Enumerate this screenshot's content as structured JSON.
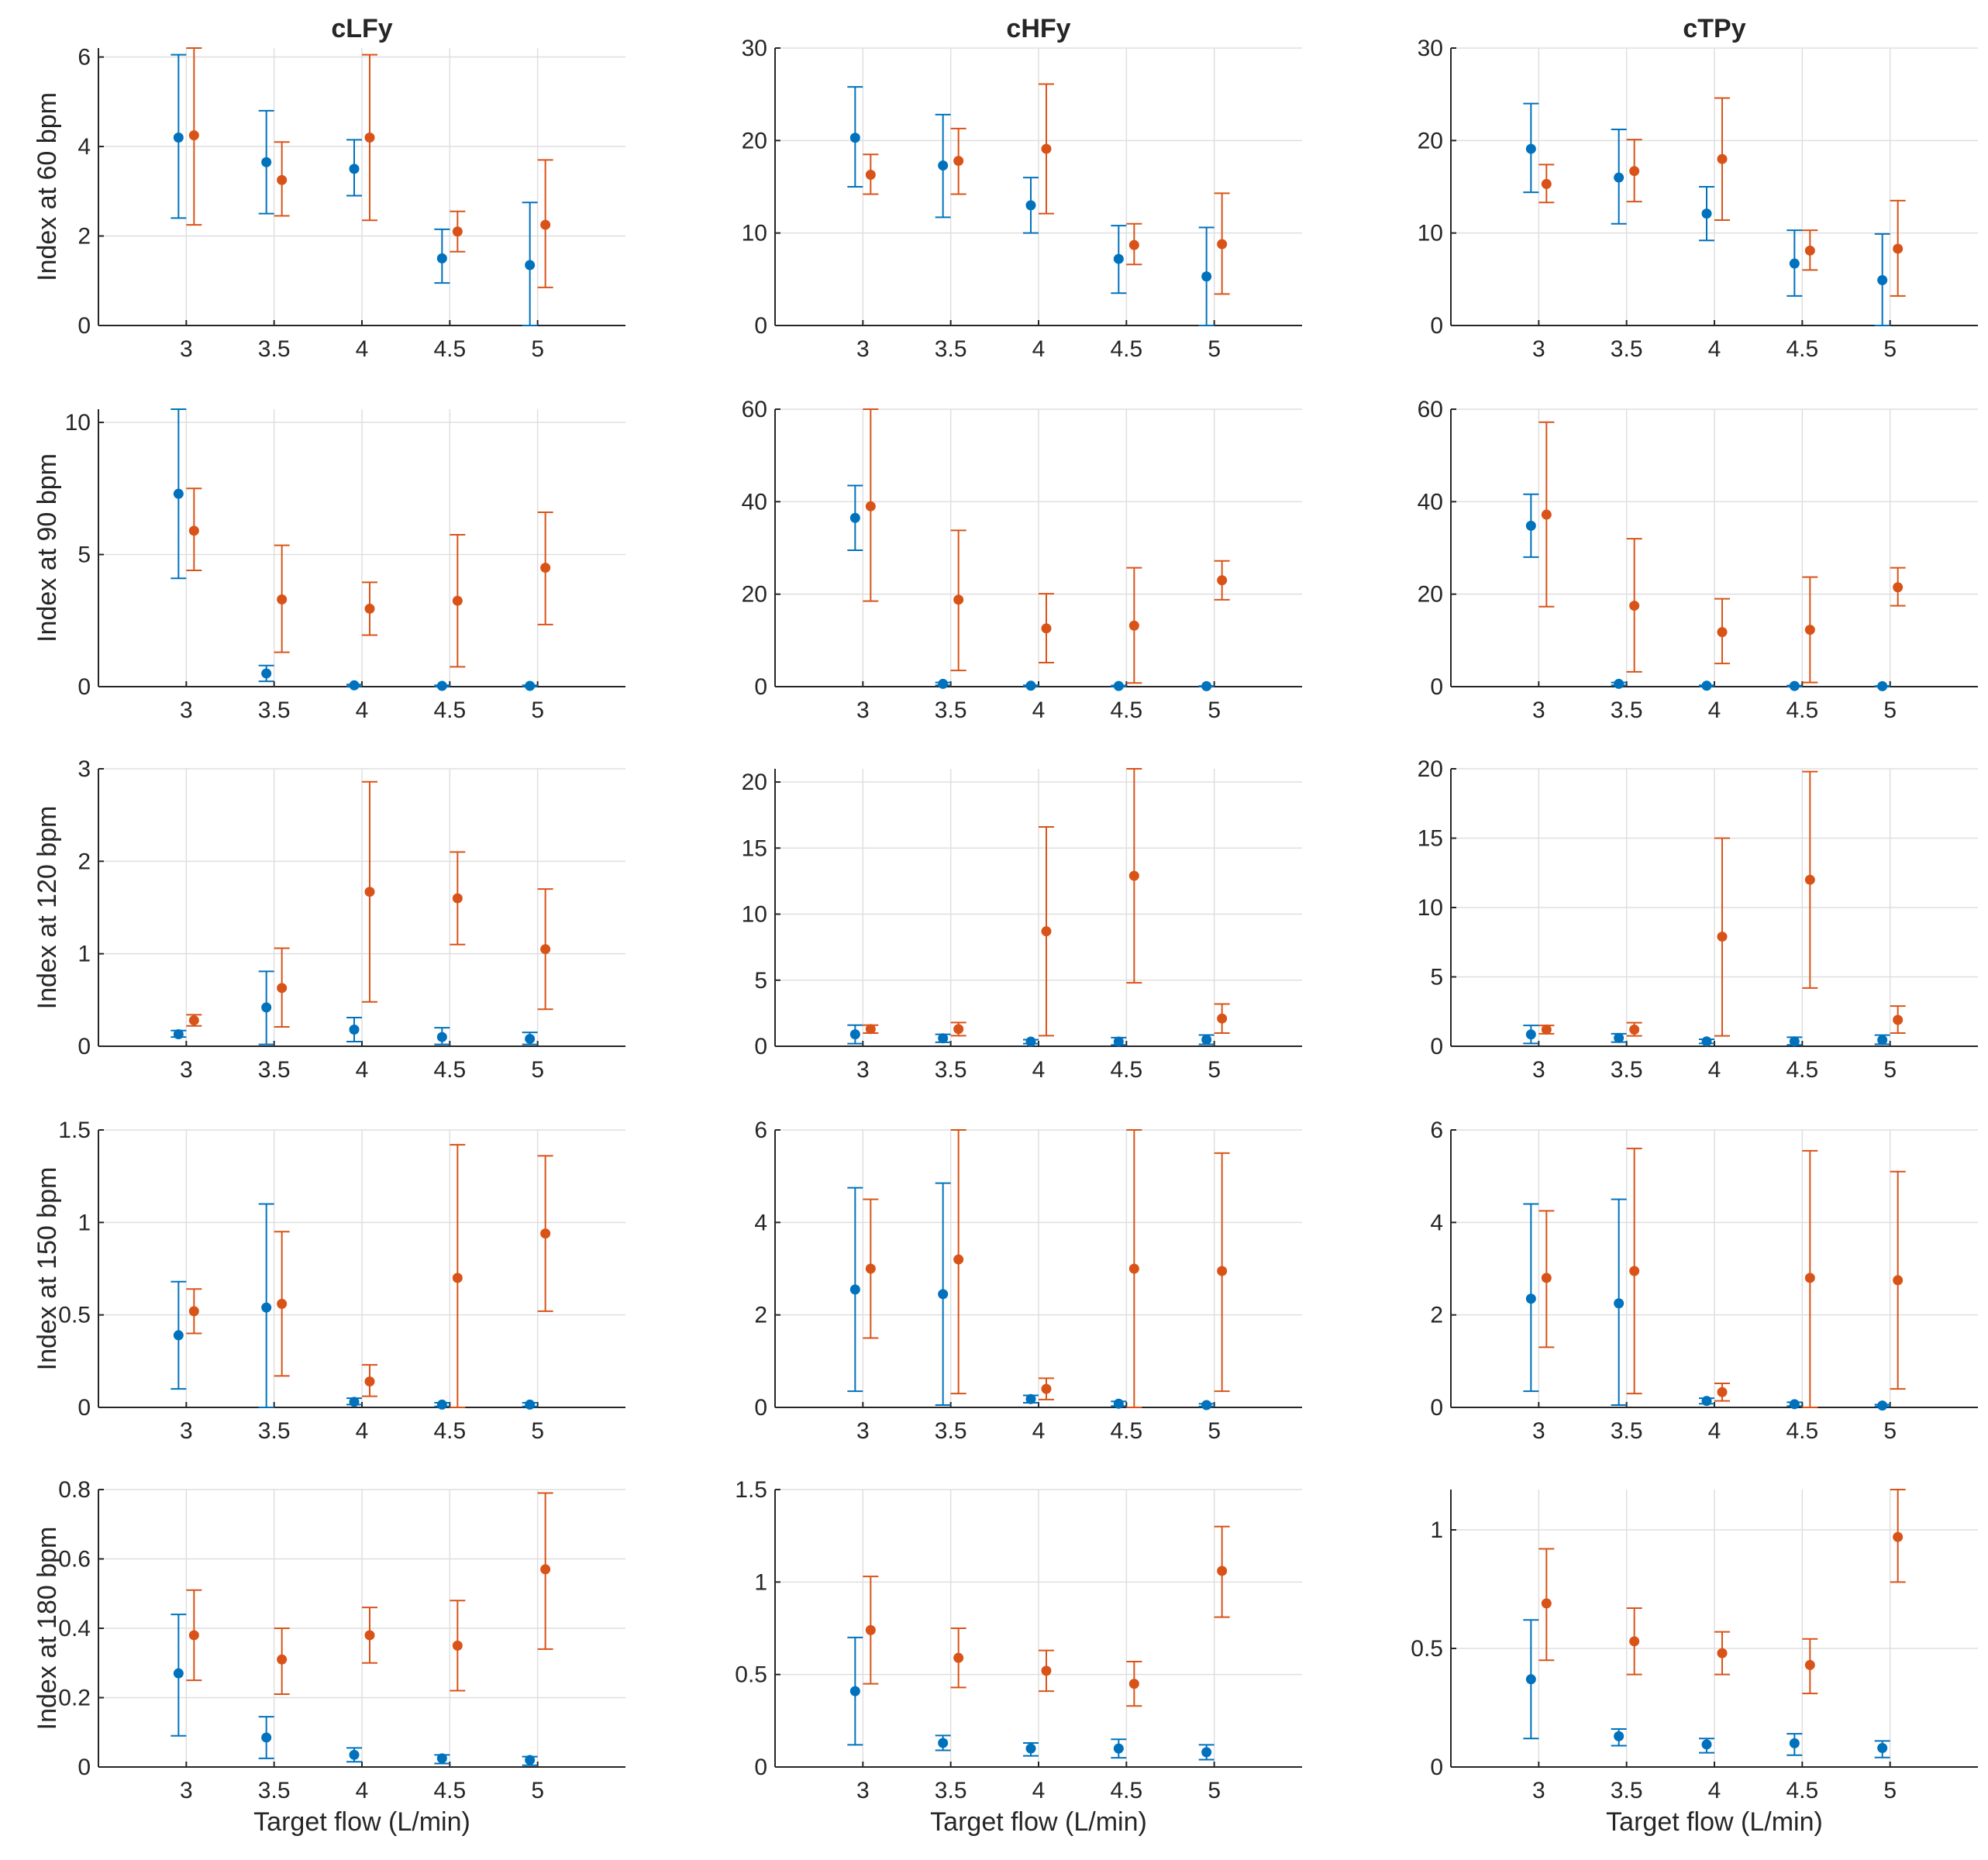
{
  "chart_data": {
    "type": "errorbar-grid",
    "column_titles": [
      "cLFy",
      "cHFy",
      "cTPy"
    ],
    "row_labels": [
      "Index at 60 bpm",
      "Index at 90 bpm",
      "Index at 120 bpm",
      "Index at 150 bpm",
      "Index at 180 bpm"
    ],
    "xlabel": "Target flow (L/min)",
    "x": [
      3,
      3.5,
      4,
      4.5,
      5
    ],
    "x_tick_labels": [
      "3",
      "3.5",
      "4",
      "4.5",
      "5"
    ],
    "xlim": [
      2.5,
      5.5
    ],
    "colors": {
      "series_a": "#0072BD",
      "series_b": "#D95319"
    },
    "panels": [
      {
        "row": 0,
        "col": 0,
        "ylim": [
          0,
          6.2
        ],
        "yticks": [
          0,
          2,
          4,
          6
        ],
        "ytick_labels": [
          "0",
          "2",
          "4",
          "6"
        ],
        "series": [
          {
            "name": "blue",
            "mean": [
              4.2,
              3.65,
              3.5,
              1.5,
              1.35
            ],
            "low": [
              2.4,
              2.5,
              2.9,
              0.95,
              0
            ],
            "high": [
              6.05,
              4.8,
              4.15,
              2.15,
              2.75
            ]
          },
          {
            "name": "orange",
            "mean": [
              4.25,
              3.25,
              4.2,
              2.1,
              2.25
            ],
            "low": [
              2.25,
              2.45,
              2.35,
              1.65,
              0.85
            ],
            "high": [
              6.25,
              4.1,
              6.05,
              2.55,
              3.7
            ]
          }
        ]
      },
      {
        "row": 0,
        "col": 1,
        "ylim": [
          0,
          30
        ],
        "yticks": [
          0,
          10,
          20,
          30
        ],
        "ytick_labels": [
          "0",
          "10",
          "20",
          "30"
        ],
        "series": [
          {
            "name": "blue",
            "mean": [
              20.3,
              17.3,
              13,
              7.2,
              5.3
            ],
            "low": [
              15,
              11.7,
              10,
              3.5,
              0
            ],
            "high": [
              25.8,
              22.8,
              16,
              10.8,
              10.6
            ]
          },
          {
            "name": "orange",
            "mean": [
              16.3,
              17.8,
              19.1,
              8.7,
              8.8
            ],
            "low": [
              14.2,
              14.2,
              12.1,
              6.6,
              3.4
            ],
            "high": [
              18.5,
              21.3,
              26.1,
              11,
              14.3
            ]
          }
        ]
      },
      {
        "row": 0,
        "col": 2,
        "ylim": [
          0,
          30
        ],
        "yticks": [
          0,
          10,
          20,
          30
        ],
        "ytick_labels": [
          "0",
          "10",
          "20",
          "30"
        ],
        "series": [
          {
            "name": "blue",
            "mean": [
              19.1,
              16,
              12.1,
              6.7,
              4.9
            ],
            "low": [
              14.4,
              11,
              9.2,
              3.2,
              0
            ],
            "high": [
              24,
              21.2,
              15,
              10.3,
              9.9
            ]
          },
          {
            "name": "orange",
            "mean": [
              15.3,
              16.7,
              18,
              8.1,
              8.3
            ],
            "low": [
              13.3,
              13.4,
              11.4,
              6,
              3.2
            ],
            "high": [
              17.4,
              20.1,
              24.6,
              10.3,
              13.5
            ]
          }
        ]
      },
      {
        "row": 1,
        "col": 0,
        "ylim": [
          0,
          10.5
        ],
        "yticks": [
          0,
          5,
          10
        ],
        "ytick_labels": [
          "0",
          "5",
          "10"
        ],
        "series": [
          {
            "name": "blue",
            "mean": [
              7.3,
              0.5,
              0.05,
              0.03,
              0.03
            ],
            "low": [
              4.1,
              0.2,
              0.02,
              0.01,
              0.01
            ],
            "high": [
              10.5,
              0.8,
              0.08,
              0.05,
              0.05
            ]
          },
          {
            "name": "orange",
            "mean": [
              5.9,
              3.3,
              2.95,
              3.25,
              4.5
            ],
            "low": [
              4.4,
              1.3,
              1.95,
              0.75,
              2.35
            ],
            "high": [
              7.5,
              5.35,
              3.95,
              5.75,
              6.6
            ]
          }
        ]
      },
      {
        "row": 1,
        "col": 1,
        "ylim": [
          0,
          60
        ],
        "yticks": [
          0,
          20,
          40,
          60
        ],
        "ytick_labels": [
          "0",
          "20",
          "40",
          "60"
        ],
        "series": [
          {
            "name": "blue",
            "mean": [
              36.5,
              0.6,
              0.2,
              0.15,
              0.1
            ],
            "low": [
              29.5,
              0.3,
              0.1,
              0.05,
              0.05
            ],
            "high": [
              43.5,
              0.9,
              0.3,
              0.25,
              0.15
            ]
          },
          {
            "name": "orange",
            "mean": [
              39,
              18.8,
              12.6,
              13.2,
              23
            ],
            "low": [
              18.5,
              3.5,
              5.2,
              0.8,
              18.8
            ],
            "high": [
              60,
              33.8,
              20.1,
              25.7,
              27.2
            ]
          }
        ]
      },
      {
        "row": 1,
        "col": 2,
        "ylim": [
          0,
          60
        ],
        "yticks": [
          0,
          20,
          40,
          60
        ],
        "ytick_labels": [
          "0",
          "20",
          "40",
          "60"
        ],
        "series": [
          {
            "name": "blue",
            "mean": [
              34.8,
              0.6,
              0.2,
              0.15,
              0.1
            ],
            "low": [
              28,
              0.3,
              0.1,
              0.05,
              0.05
            ],
            "high": [
              41.6,
              0.9,
              0.3,
              0.25,
              0.15
            ]
          },
          {
            "name": "orange",
            "mean": [
              37.2,
              17.5,
              11.8,
              12.3,
              21.5
            ],
            "low": [
              17.3,
              3.2,
              5,
              0.9,
              17.5
            ],
            "high": [
              57.2,
              32,
              19,
              23.7,
              25.7
            ]
          }
        ]
      },
      {
        "row": 2,
        "col": 0,
        "ylim": [
          0,
          3
        ],
        "yticks": [
          0,
          1,
          2,
          3
        ],
        "ytick_labels": [
          "0",
          "1",
          "2",
          "3"
        ],
        "series": [
          {
            "name": "blue",
            "mean": [
              0.13,
              0.42,
              0.18,
              0.1,
              0.08
            ],
            "low": [
              0.1,
              0.02,
              0.05,
              0.02,
              0.02
            ],
            "high": [
              0.17,
              0.81,
              0.31,
              0.2,
              0.15
            ]
          },
          {
            "name": "orange",
            "mean": [
              0.28,
              0.63,
              1.67,
              1.6,
              1.05
            ],
            "low": [
              0.22,
              0.21,
              0.48,
              1.1,
              0.4
            ],
            "high": [
              0.34,
              1.06,
              2.86,
              2.1,
              1.7
            ]
          }
        ]
      },
      {
        "row": 2,
        "col": 1,
        "ylim": [
          0,
          21
        ],
        "yticks": [
          0,
          5,
          10,
          15,
          20
        ],
        "ytick_labels": [
          "0",
          "5",
          "10",
          "15",
          "20"
        ],
        "series": [
          {
            "name": "blue",
            "mean": [
              0.9,
              0.6,
              0.35,
              0.35,
              0.5
            ],
            "low": [
              0.2,
              0.3,
              0.2,
              0.1,
              0.15
            ],
            "high": [
              1.6,
              0.9,
              0.5,
              0.65,
              0.85
            ]
          },
          {
            "name": "orange",
            "mean": [
              1.3,
              1.3,
              8.7,
              12.9,
              2.1
            ],
            "low": [
              1,
              0.8,
              0.8,
              4.8,
              1
            ],
            "high": [
              1.6,
              1.8,
              16.6,
              21,
              3.2
            ]
          }
        ]
      },
      {
        "row": 2,
        "col": 2,
        "ylim": [
          0,
          20
        ],
        "yticks": [
          0,
          5,
          10,
          15,
          20
        ],
        "ytick_labels": [
          "0",
          "5",
          "10",
          "15",
          "20"
        ],
        "series": [
          {
            "name": "blue",
            "mean": [
              0.85,
              0.6,
              0.35,
              0.35,
              0.45
            ],
            "low": [
              0.2,
              0.3,
              0.2,
              0.1,
              0.15
            ],
            "high": [
              1.5,
              0.9,
              0.5,
              0.65,
              0.8
            ]
          },
          {
            "name": "orange",
            "mean": [
              1.2,
              1.2,
              7.9,
              12,
              1.9
            ],
            "low": [
              0.9,
              0.75,
              0.75,
              4.2,
              0.95
            ],
            "high": [
              1.5,
              1.7,
              15,
              19.8,
              2.9
            ]
          }
        ]
      },
      {
        "row": 3,
        "col": 0,
        "ylim": [
          0,
          1.5
        ],
        "yticks": [
          0,
          0.5,
          1,
          1.5
        ],
        "ytick_labels": [
          "0",
          "0.5",
          "1",
          "1.5"
        ],
        "series": [
          {
            "name": "blue",
            "mean": [
              0.39,
              0.54,
              0.03,
              0.015,
              0.015
            ],
            "low": [
              0.1,
              0,
              0.015,
              0.005,
              0.005
            ],
            "high": [
              0.68,
              1.1,
              0.05,
              0.025,
              0.025
            ]
          },
          {
            "name": "orange",
            "mean": [
              0.52,
              0.56,
              0.14,
              0.7,
              0.94
            ],
            "low": [
              0.4,
              0.17,
              0.06,
              0,
              0.52
            ],
            "high": [
              0.64,
              0.95,
              0.23,
              1.42,
              1.36
            ]
          }
        ]
      },
      {
        "row": 3,
        "col": 1,
        "ylim": [
          0,
          6
        ],
        "yticks": [
          0,
          2,
          4,
          6
        ],
        "ytick_labels": [
          "0",
          "2",
          "4",
          "6"
        ],
        "series": [
          {
            "name": "blue",
            "mean": [
              2.55,
              2.45,
              0.18,
              0.08,
              0.05
            ],
            "low": [
              0.35,
              0.05,
              0.1,
              0.03,
              0.02
            ],
            "high": [
              4.75,
              4.85,
              0.26,
              0.13,
              0.08
            ]
          },
          {
            "name": "orange",
            "mean": [
              3,
              3.2,
              0.4,
              3,
              2.95
            ],
            "low": [
              1.5,
              0.3,
              0.17,
              0,
              0.35
            ],
            "high": [
              4.5,
              6.05,
              0.63,
              6.05,
              5.5
            ]
          }
        ]
      },
      {
        "row": 3,
        "col": 2,
        "ylim": [
          0,
          6
        ],
        "yticks": [
          0,
          2,
          4,
          6
        ],
        "ytick_labels": [
          "0",
          "2",
          "4",
          "6"
        ],
        "series": [
          {
            "name": "blue",
            "mean": [
              2.35,
              2.25,
              0.14,
              0.07,
              0.04
            ],
            "low": [
              0.35,
              0.05,
              0.08,
              0.03,
              0.02
            ],
            "high": [
              4.4,
              4.5,
              0.2,
              0.11,
              0.06
            ]
          },
          {
            "name": "orange",
            "mean": [
              2.8,
              2.95,
              0.33,
              2.8,
              2.75
            ],
            "low": [
              1.3,
              0.3,
              0.14,
              0,
              0.4
            ],
            "high": [
              4.25,
              5.6,
              0.52,
              5.55,
              5.1
            ]
          }
        ]
      },
      {
        "row": 4,
        "col": 0,
        "ylim": [
          0,
          0.8
        ],
        "yticks": [
          0,
          0.2,
          0.4,
          0.6,
          0.8
        ],
        "ytick_labels": [
          "0",
          "0.2",
          "0.4",
          "0.6",
          "0.8"
        ],
        "series": [
          {
            "name": "blue",
            "mean": [
              0.27,
              0.085,
              0.035,
              0.025,
              0.02
            ],
            "low": [
              0.09,
              0.025,
              0.015,
              0.01,
              0.005
            ],
            "high": [
              0.44,
              0.145,
              0.055,
              0.035,
              0.03
            ]
          },
          {
            "name": "orange",
            "mean": [
              0.38,
              0.31,
              0.38,
              0.35,
              0.57
            ],
            "low": [
              0.25,
              0.21,
              0.3,
              0.22,
              0.34
            ],
            "high": [
              0.51,
              0.4,
              0.46,
              0.48,
              0.79
            ]
          }
        ]
      },
      {
        "row": 4,
        "col": 1,
        "ylim": [
          0,
          1.5
        ],
        "yticks": [
          0,
          0.5,
          1,
          1.5
        ],
        "ytick_labels": [
          "0",
          "0.5",
          "1",
          "1.5"
        ],
        "series": [
          {
            "name": "blue",
            "mean": [
              0.41,
              0.13,
              0.1,
              0.1,
              0.08
            ],
            "low": [
              0.12,
              0.09,
              0.06,
              0.05,
              0.04
            ],
            "high": [
              0.7,
              0.17,
              0.13,
              0.15,
              0.12
            ]
          },
          {
            "name": "orange",
            "mean": [
              0.74,
              0.59,
              0.52,
              0.45,
              1.06
            ],
            "low": [
              0.45,
              0.43,
              0.41,
              0.33,
              0.81
            ],
            "high": [
              1.03,
              0.75,
              0.63,
              0.57,
              1.3
            ]
          }
        ]
      },
      {
        "row": 4,
        "col": 2,
        "ylim": [
          0,
          1.17
        ],
        "yticks": [
          0,
          0.5,
          1
        ],
        "ytick_labels": [
          "0",
          "0.5",
          "1"
        ],
        "series": [
          {
            "name": "blue",
            "mean": [
              0.37,
              0.13,
              0.095,
              0.1,
              0.08
            ],
            "low": [
              0.12,
              0.09,
              0.06,
              0.05,
              0.04
            ],
            "high": [
              0.62,
              0.16,
              0.12,
              0.14,
              0.11
            ]
          },
          {
            "name": "orange",
            "mean": [
              0.69,
              0.53,
              0.48,
              0.43,
              0.97
            ],
            "low": [
              0.45,
              0.39,
              0.39,
              0.31,
              0.78
            ],
            "high": [
              0.92,
              0.67,
              0.57,
              0.54,
              1.17
            ]
          }
        ]
      }
    ]
  }
}
